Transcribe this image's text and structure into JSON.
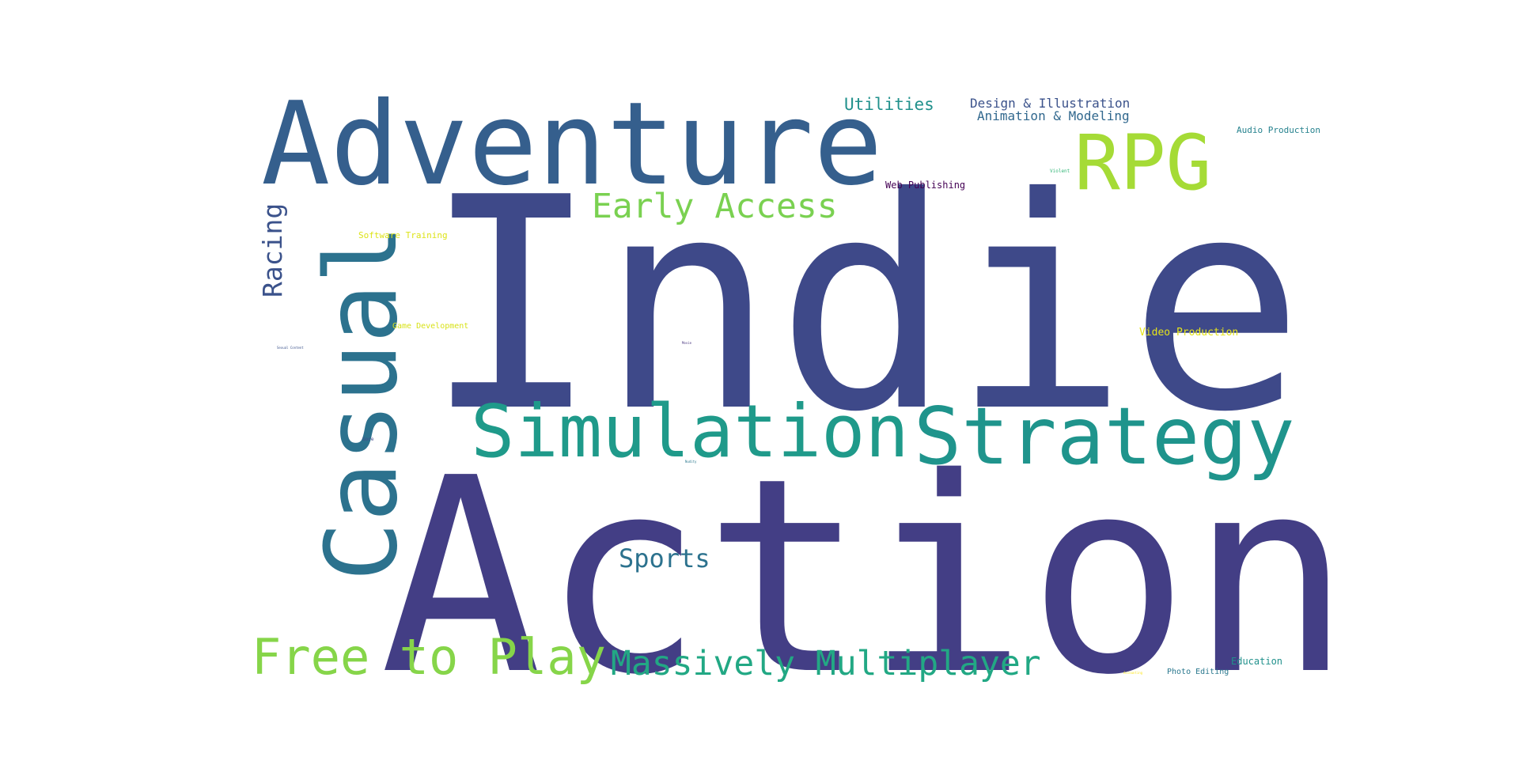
{
  "word_cloud": {
    "words": {
      "indie": {
        "text": "Indie",
        "color": "#3e4989"
      },
      "action": {
        "text": "Action",
        "color": "#433e85"
      },
      "adventure": {
        "text": "Adventure",
        "color": "#355f8d"
      },
      "casual": {
        "text": "Casual",
        "color": "#2c728e"
      },
      "simulation": {
        "text": "Simulation",
        "color": "#1f9a8a"
      },
      "strategy": {
        "text": "Strategy",
        "color": "#1f948c"
      },
      "rpg": {
        "text": "RPG",
        "color": "#a5db36"
      },
      "free": {
        "text": "Free to Play",
        "color": "#86d549"
      },
      "mmo": {
        "text": "Massively Multiplayer",
        "color": "#22a884"
      },
      "early": {
        "text": "Early Access",
        "color": "#7ad151"
      },
      "racing": {
        "text": "Racing",
        "color": "#3b528b"
      },
      "sports": {
        "text": "Sports",
        "color": "#2c728e"
      },
      "utilities": {
        "text": "Utilities",
        "color": "#21918c"
      },
      "design": {
        "text": "Design & Illustration",
        "color": "#3b528b"
      },
      "animation": {
        "text": "Animation & Modeling",
        "color": "#31688e"
      },
      "audio": {
        "text": "Audio Production",
        "color": "#26828e"
      },
      "webpub": {
        "text": "Web Publishing",
        "color": "#440154"
      },
      "violent": {
        "text": "Violent",
        "color": "#35b779"
      },
      "software": {
        "text": "Software Training",
        "color": "#dde318"
      },
      "gamedev": {
        "text": "Game Development",
        "color": "#d8e219"
      },
      "videoprod": {
        "text": "Video Production",
        "color": "#e5e419"
      },
      "nsfw": {
        "text": "Sexual Content",
        "color": "#3b528b"
      },
      "movie": {
        "text": "Movie",
        "color": "#46337e"
      },
      "gore": {
        "text": "Gore",
        "color": "#404688"
      },
      "nudity": {
        "text": "Nudity",
        "color": "#2a788e"
      },
      "education": {
        "text": "Education",
        "color": "#21918c"
      },
      "photo": {
        "text": "Photo Editing",
        "color": "#2a788e"
      },
      "accounting": {
        "text": "Accounting",
        "color": "#fde725"
      }
    }
  }
}
